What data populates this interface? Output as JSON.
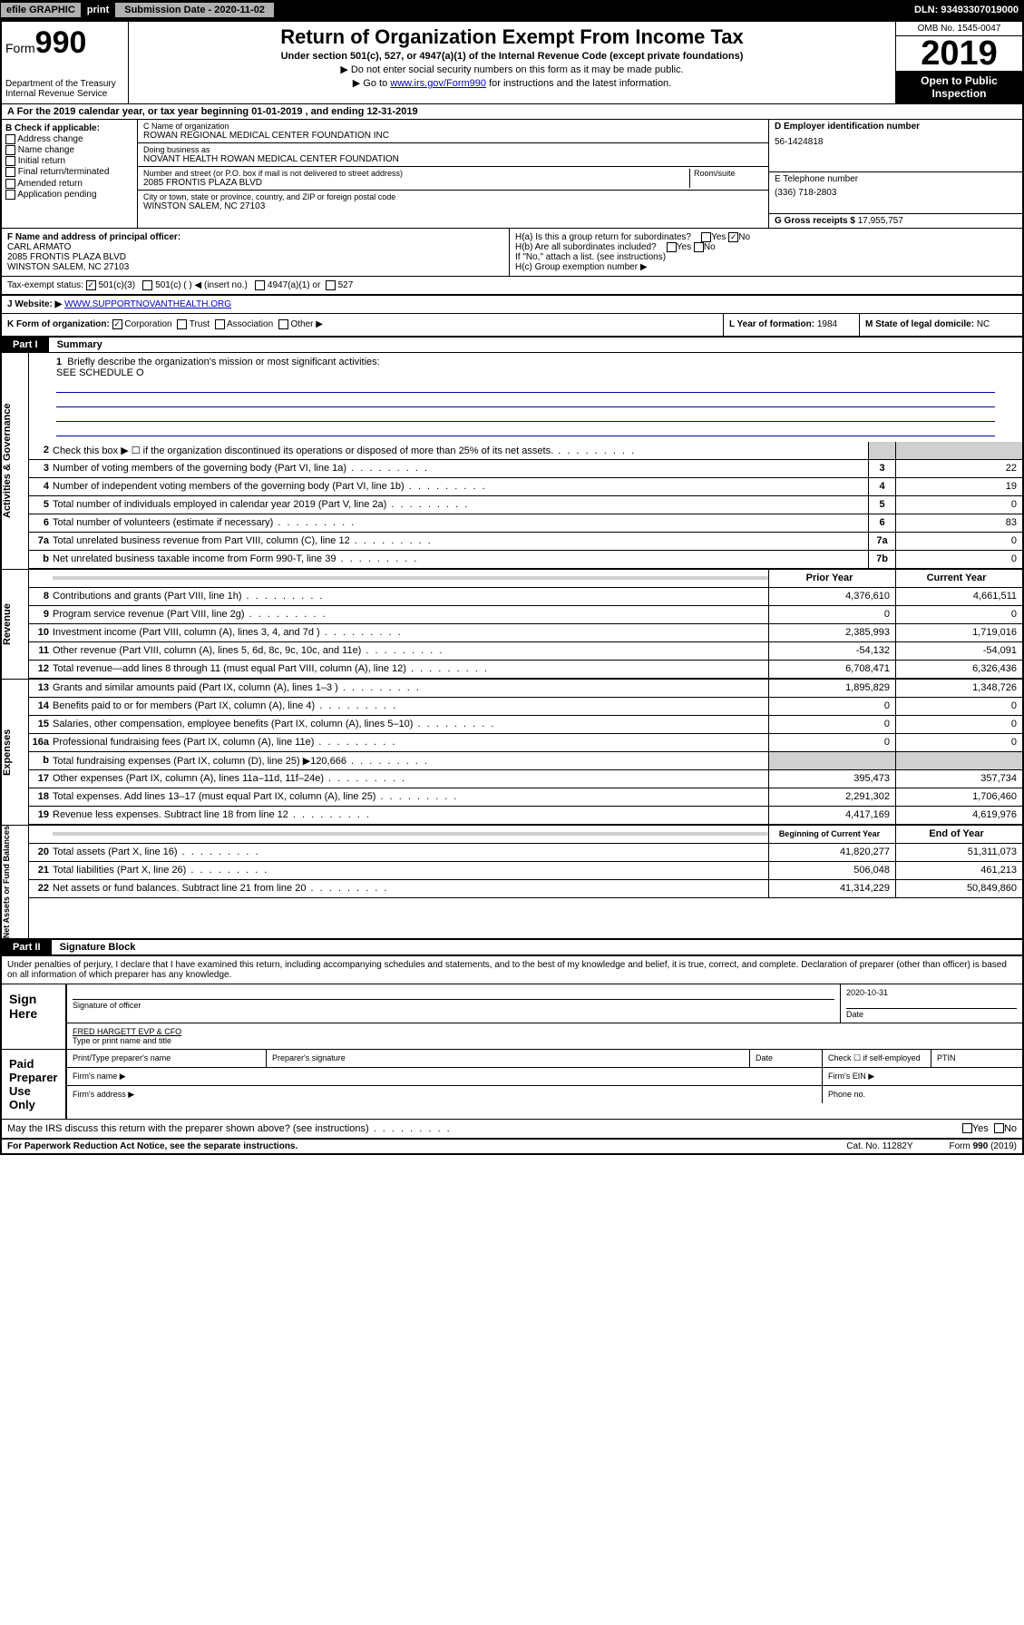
{
  "topbar": {
    "efile": "efile GRAPHIC",
    "print": "print",
    "subdate_label": "Submission Date - 2020-11-02",
    "dln": "DLN: 93493307019000"
  },
  "header": {
    "form_prefix": "Form",
    "form_number": "990",
    "dept": "Department of the Treasury",
    "irs": "Internal Revenue Service",
    "title": "Return of Organization Exempt From Income Tax",
    "subtitle": "Under section 501(c), 527, or 4947(a)(1) of the Internal Revenue Code (except private foundations)",
    "note1": "▶ Do not enter social security numbers on this form as it may be made public.",
    "note2_pre": "▶ Go to ",
    "note2_link": "www.irs.gov/Form990",
    "note2_post": " for instructions and the latest information.",
    "omb": "OMB No. 1545-0047",
    "year": "2019",
    "open": "Open to Public Inspection"
  },
  "row_a": "A For the 2019 calendar year, or tax year beginning 01-01-2019    , and ending 12-31-2019",
  "col_b": {
    "title": "B Check if applicable:",
    "items": [
      "Address change",
      "Name change",
      "Initial return",
      "Final return/terminated",
      "Amended return",
      "Application pending"
    ]
  },
  "col_c": {
    "name_label": "C Name of organization",
    "name": "ROWAN REGIONAL MEDICAL CENTER FOUNDATION INC",
    "dba_label": "Doing business as",
    "dba": "NOVANT HEALTH ROWAN MEDICAL CENTER FOUNDATION",
    "street_label": "Number and street (or P.O. box if mail is not delivered to street address)",
    "street": "2085 FRONTIS PLAZA BLVD",
    "suite_label": "Room/suite",
    "city_label": "City or town, state or province, country, and ZIP or foreign postal code",
    "city": "WINSTON SALEM, NC  27103"
  },
  "col_d": {
    "ein_label": "D Employer identification number",
    "ein": "56-1424818",
    "phone_label": "E Telephone number",
    "phone": "(336) 718-2803",
    "gross_label": "G Gross receipts $",
    "gross": "17,955,757"
  },
  "f": {
    "label": "F Name and address of principal officer:",
    "name": "CARL ARMATO",
    "street": "2085 FRONTIS PLAZA BLVD",
    "city": "WINSTON SALEM, NC  27103"
  },
  "h": {
    "a": "H(a)  Is this a group return for subordinates?",
    "a_yes": "Yes",
    "a_no": "No",
    "b": "H(b)  Are all subordinates included?",
    "b_yes": "Yes",
    "b_no": "No",
    "b_note": "If \"No,\" attach a list. (see instructions)",
    "c": "H(c)  Group exemption number ▶"
  },
  "i": {
    "label": "Tax-exempt status:",
    "o1": "501(c)(3)",
    "o2": "501(c) (  ) ◀ (insert no.)",
    "o3": "4947(a)(1) or",
    "o4": "527"
  },
  "j": {
    "label": "J Website: ▶",
    "url": "WWW.SUPPORTNOVANTHEALTH.ORG"
  },
  "k": {
    "label": "K Form of organization:",
    "o1": "Corporation",
    "o2": "Trust",
    "o3": "Association",
    "o4": "Other ▶"
  },
  "l": {
    "label": "L Year of formation:",
    "val": "1984"
  },
  "m": {
    "label": "M State of legal domicile:",
    "val": "NC"
  },
  "part1": {
    "tag": "Part I",
    "title": "Summary"
  },
  "mission": {
    "num": "1",
    "label": "Briefly describe the organization's mission or most significant activities:",
    "text": "SEE SCHEDULE O"
  },
  "lines_top": [
    {
      "num": "2",
      "desc": "Check this box ▶ ☐  if the organization discontinued its operations or disposed of more than 25% of its net assets."
    },
    {
      "num": "3",
      "desc": "Number of voting members of the governing body (Part VI, line 1a)",
      "box": "3",
      "val": "22"
    },
    {
      "num": "4",
      "desc": "Number of independent voting members of the governing body (Part VI, line 1b)",
      "box": "4",
      "val": "19"
    },
    {
      "num": "5",
      "desc": "Total number of individuals employed in calendar year 2019 (Part V, line 2a)",
      "box": "5",
      "val": "0"
    },
    {
      "num": "6",
      "desc": "Total number of volunteers (estimate if necessary)",
      "box": "6",
      "val": "83"
    },
    {
      "num": "7a",
      "desc": "Total unrelated business revenue from Part VIII, column (C), line 12",
      "box": "7a",
      "val": "0"
    },
    {
      "num": "b",
      "desc": "Net unrelated business taxable income from Form 990-T, line 39",
      "box": "7b",
      "val": "0"
    }
  ],
  "yr_hdr": {
    "prior": "Prior Year",
    "current": "Current Year"
  },
  "revenue": [
    {
      "num": "8",
      "desc": "Contributions and grants (Part VIII, line 1h)",
      "p": "4,376,610",
      "c": "4,661,511"
    },
    {
      "num": "9",
      "desc": "Program service revenue (Part VIII, line 2g)",
      "p": "0",
      "c": "0"
    },
    {
      "num": "10",
      "desc": "Investment income (Part VIII, column (A), lines 3, 4, and 7d )",
      "p": "2,385,993",
      "c": "1,719,016"
    },
    {
      "num": "11",
      "desc": "Other revenue (Part VIII, column (A), lines 5, 6d, 8c, 9c, 10c, and 11e)",
      "p": "-54,132",
      "c": "-54,091"
    },
    {
      "num": "12",
      "desc": "Total revenue—add lines 8 through 11 (must equal Part VIII, column (A), line 12)",
      "p": "6,708,471",
      "c": "6,326,436"
    }
  ],
  "expenses": [
    {
      "num": "13",
      "desc": "Grants and similar amounts paid (Part IX, column (A), lines 1–3 )",
      "p": "1,895,829",
      "c": "1,348,726"
    },
    {
      "num": "14",
      "desc": "Benefits paid to or for members (Part IX, column (A), line 4)",
      "p": "0",
      "c": "0"
    },
    {
      "num": "15",
      "desc": "Salaries, other compensation, employee benefits (Part IX, column (A), lines 5–10)",
      "p": "0",
      "c": "0"
    },
    {
      "num": "16a",
      "desc": "Professional fundraising fees (Part IX, column (A), line 11e)",
      "p": "0",
      "c": "0"
    },
    {
      "num": "b",
      "desc": "Total fundraising expenses (Part IX, column (D), line 25) ▶120,666",
      "p": "",
      "c": "",
      "grey": true
    },
    {
      "num": "17",
      "desc": "Other expenses (Part IX, column (A), lines 11a–11d, 11f–24e)",
      "p": "395,473",
      "c": "357,734"
    },
    {
      "num": "18",
      "desc": "Total expenses. Add lines 13–17 (must equal Part IX, column (A), line 25)",
      "p": "2,291,302",
      "c": "1,706,460"
    },
    {
      "num": "19",
      "desc": "Revenue less expenses. Subtract line 18 from line 12",
      "p": "4,417,169",
      "c": "4,619,976"
    }
  ],
  "na_hdr": {
    "begin": "Beginning of Current Year",
    "end": "End of Year"
  },
  "netassets": [
    {
      "num": "20",
      "desc": "Total assets (Part X, line 16)",
      "p": "41,820,277",
      "c": "51,311,073"
    },
    {
      "num": "21",
      "desc": "Total liabilities (Part X, line 26)",
      "p": "506,048",
      "c": "461,213"
    },
    {
      "num": "22",
      "desc": "Net assets or fund balances. Subtract line 21 from line 20",
      "p": "41,314,229",
      "c": "50,849,860"
    }
  ],
  "vtabs": {
    "gov": "Activities & Governance",
    "rev": "Revenue",
    "exp": "Expenses",
    "na": "Net Assets or Fund Balances"
  },
  "part2": {
    "tag": "Part II",
    "title": "Signature Block"
  },
  "sig": {
    "note": "Under penalties of perjury, I declare that I have examined this return, including accompanying schedules and statements, and to the best of my knowledge and belief, it is true, correct, and complete. Declaration of preparer (other than officer) is based on all information of which preparer has any knowledge.",
    "sign_here": "Sign Here",
    "sig_label": "Signature of officer",
    "date": "2020-10-31",
    "date_label": "Date",
    "name": "FRED HARGETT EVP & CFO",
    "name_label": "Type or print name and title",
    "paid": "Paid Preparer Use Only",
    "p_name_label": "Print/Type preparer's name",
    "p_sig_label": "Preparer's signature",
    "p_date_label": "Date",
    "p_check": "Check ☐ if self-employed",
    "ptin": "PTIN",
    "firm_name": "Firm's name  ▶",
    "firm_ein": "Firm's EIN ▶",
    "firm_addr": "Firm's address ▶",
    "phone": "Phone no.",
    "discuss": "May the IRS discuss this return with the preparer shown above? (see instructions)",
    "yes": "Yes",
    "no": "No"
  },
  "footer": {
    "left": "For Paperwork Reduction Act Notice, see the separate instructions.",
    "mid": "Cat. No. 11282Y",
    "right": "Form 990 (2019)"
  }
}
